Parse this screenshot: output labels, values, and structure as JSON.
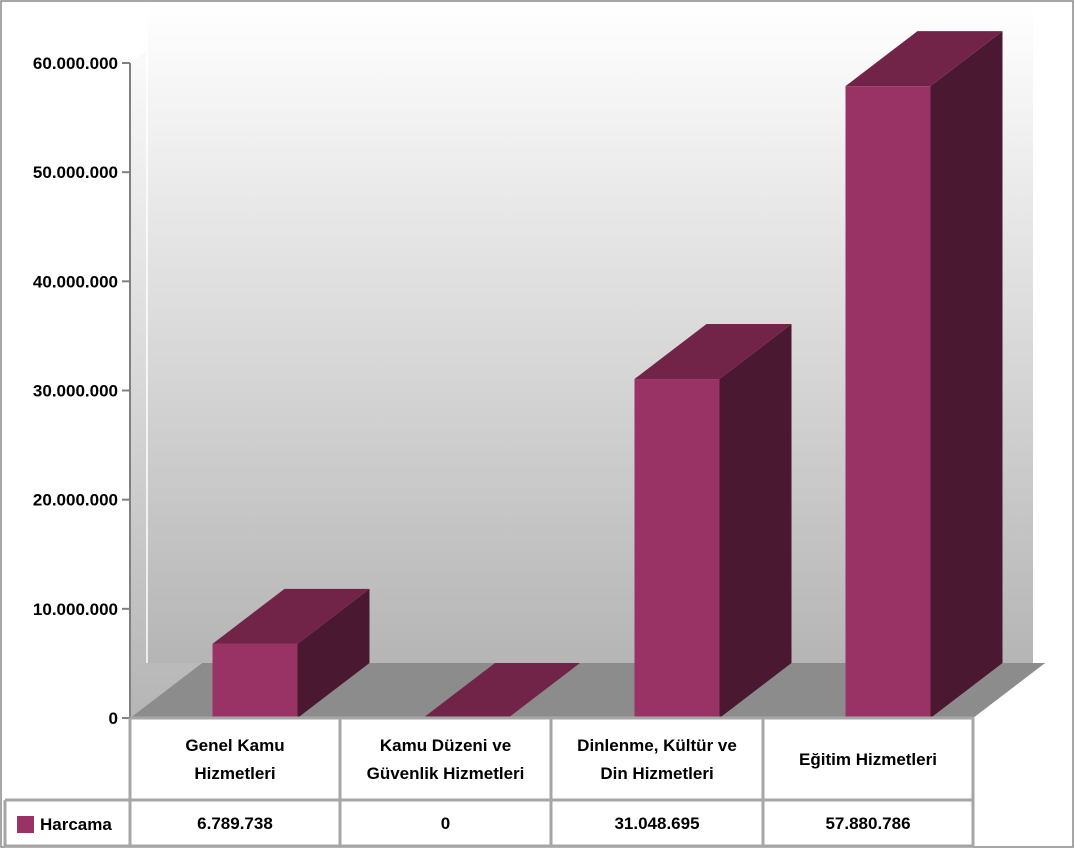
{
  "chart_data": {
    "type": "bar",
    "title": "",
    "xlabel": "",
    "ylabel": "",
    "categories": [
      [
        "Genel Kamu",
        "Hizmetleri"
      ],
      [
        "Kamu Düzeni ve",
        "Güvenlik Hizmetleri"
      ],
      [
        "Dinlenme, Kültür ve",
        "Din Hizmetleri"
      ],
      [
        "Eğitim Hizmetleri"
      ]
    ],
    "series": [
      {
        "name": "Harcama",
        "values": [
          6789738,
          0,
          31048695,
          57880786
        ],
        "value_labels": [
          "6.789.738",
          "0",
          "31.048.695",
          "57.880.786"
        ],
        "color_front": "#993366",
        "color_top": "#722448",
        "color_side": "#4b1831"
      }
    ],
    "ylim": [
      0,
      60000000
    ],
    "yticks": [
      0,
      10000000,
      20000000,
      30000000,
      40000000,
      50000000,
      60000000
    ],
    "ytick_labels": [
      "0",
      "10.000.000",
      "20.000.000",
      "30.000.000",
      "40.000.000",
      "50.000.000",
      "60.000.000"
    ],
    "grid": false,
    "legend": "data-table-left",
    "style": "3d-columns-with-data-table",
    "colors": {
      "wall_top": "#ffffff",
      "wall_bottom": "#b5b5b5",
      "floor": "#8c8c8c",
      "table_border": "#a6a6a6"
    }
  }
}
